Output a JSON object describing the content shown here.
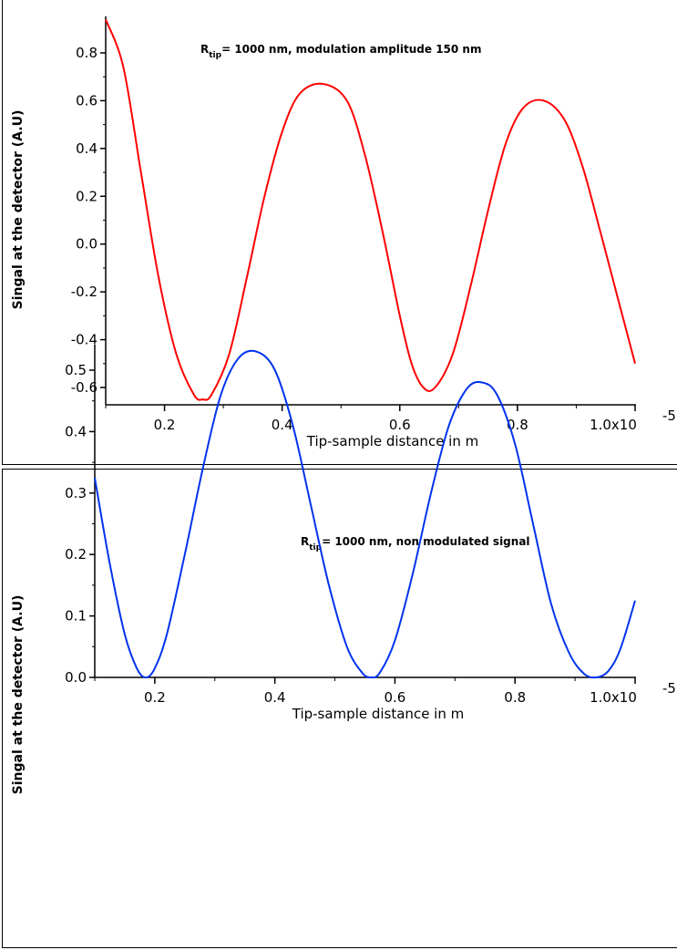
{
  "chart_data": [
    {
      "type": "line",
      "xlabel": "Tip-sample distance in m",
      "ylabel": "Singal at the detector (A.U)",
      "x_tick_labels": [
        "0.2",
        "0.4",
        "0.6",
        "0.8",
        "1.0x10"
      ],
      "x_exponent_label": "-5",
      "y_tick_labels": [
        "0.8",
        "0.6",
        "0.4",
        "0.2",
        "0.0",
        "-0.2",
        "-0.4",
        "-0.6"
      ],
      "y_ticks": [
        0.8,
        0.6,
        0.4,
        0.2,
        0.0,
        -0.2,
        -0.4,
        -0.6
      ],
      "x_ticks": [
        0.2,
        0.4,
        0.6,
        0.8,
        1.0
      ],
      "xlim": [
        0.1,
        1.0
      ],
      "ylim": [
        -0.67,
        0.94
      ],
      "annotation": {
        "prefix": "R",
        "subscript": "tip",
        "text": "= 1000 nm, modulation amplitude 150 nm"
      },
      "series": [
        {
          "color": "#ff0000",
          "x": [
            0.1,
            0.13,
            0.16,
            0.19,
            0.22,
            0.25,
            0.265,
            0.28,
            0.31,
            0.34,
            0.37,
            0.4,
            0.43,
            0.47,
            0.51,
            0.54,
            0.57,
            0.6,
            0.62,
            0.64,
            0.66,
            0.69,
            0.72,
            0.75,
            0.78,
            0.81,
            0.845,
            0.88,
            0.91,
            0.94,
            0.97,
            1.0
          ],
          "y": [
            0.94,
            0.74,
            0.3,
            -0.14,
            -0.46,
            -0.63,
            -0.65,
            -0.63,
            -0.46,
            -0.14,
            0.2,
            0.47,
            0.63,
            0.67,
            0.6,
            0.38,
            0.06,
            -0.3,
            -0.5,
            -0.6,
            -0.6,
            -0.46,
            -0.18,
            0.14,
            0.42,
            0.57,
            0.6,
            0.52,
            0.33,
            0.06,
            -0.22,
            -0.5
          ]
        }
      ]
    },
    {
      "type": "line",
      "xlabel": "Tip-sample distance in m",
      "ylabel": "Singal at the detector (A.U)",
      "x_tick_labels": [
        "0.2",
        "0.4",
        "0.6",
        "0.8",
        "1.0x10"
      ],
      "x_exponent_label": "-5",
      "y_tick_labels": [
        "0.5",
        "0.4",
        "0.3",
        "0.2",
        "0.1",
        "0.0"
      ],
      "y_ticks": [
        0.5,
        0.4,
        0.3,
        0.2,
        0.1,
        0.0
      ],
      "x_ticks": [
        0.2,
        0.4,
        0.6,
        0.8,
        1.0
      ],
      "xlim": [
        0.1,
        1.0
      ],
      "ylim": [
        0.0,
        0.53
      ],
      "annotation": {
        "prefix": "R",
        "subscript": "tip",
        "text": "= 1000 nm, non modulated signal"
      },
      "series": [
        {
          "color": "#0033ee",
          "x": [
            0.1,
            0.125,
            0.15,
            0.17,
            0.185,
            0.2,
            0.22,
            0.25,
            0.28,
            0.31,
            0.34,
            0.37,
            0.4,
            0.43,
            0.46,
            0.49,
            0.52,
            0.545,
            0.56,
            0.575,
            0.6,
            0.63,
            0.66,
            0.69,
            0.72,
            0.745,
            0.77,
            0.8,
            0.83,
            0.86,
            0.89,
            0.915,
            0.935,
            0.955,
            0.975,
            1.0
          ],
          "y": [
            0.325,
            0.185,
            0.07,
            0.015,
            0.0,
            0.015,
            0.07,
            0.2,
            0.34,
            0.46,
            0.52,
            0.53,
            0.5,
            0.41,
            0.28,
            0.15,
            0.05,
            0.008,
            0.0,
            0.008,
            0.06,
            0.17,
            0.3,
            0.41,
            0.47,
            0.48,
            0.46,
            0.38,
            0.25,
            0.12,
            0.04,
            0.006,
            0.0,
            0.01,
            0.045,
            0.125
          ]
        }
      ]
    }
  ]
}
